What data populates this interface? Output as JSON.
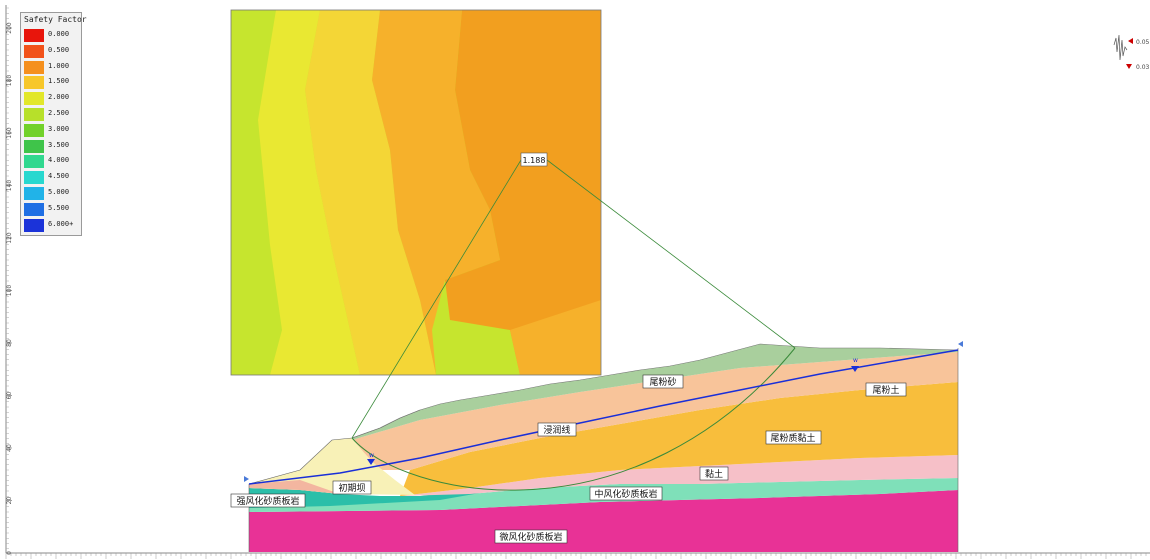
{
  "legend": {
    "title": "Safety Factor",
    "items": [
      {
        "label": "0.000",
        "color": "#e8150c"
      },
      {
        "label": "0.500",
        "color": "#f2521a"
      },
      {
        "label": "1.000",
        "color": "#f5901e"
      },
      {
        "label": "1.500",
        "color": "#f7c72a"
      },
      {
        "label": "2.000",
        "color": "#e2e72a"
      },
      {
        "label": "2.500",
        "color": "#b7e02a"
      },
      {
        "label": "3.000",
        "color": "#72d12a"
      },
      {
        "label": "3.500",
        "color": "#3fc44a"
      },
      {
        "label": "4.000",
        "color": "#30d88f"
      },
      {
        "label": "4.500",
        "color": "#28d8cf"
      },
      {
        "label": "5.000",
        "color": "#21b3e8"
      },
      {
        "label": "5.500",
        "color": "#1f6fe4"
      },
      {
        "label": "6.000+",
        "color": "#1b33d9"
      }
    ]
  },
  "vertical_axis": {
    "ticks": [
      "200",
      "180",
      "160",
      "140",
      "120",
      "100",
      "80",
      "60",
      "40",
      "20",
      "0"
    ]
  },
  "contour_grid": {
    "fill_colors": [
      "#c6e52e",
      "#e9e832",
      "#f4d636",
      "#f6b12b",
      "#f29f1f"
    ]
  },
  "critical_surface": {
    "safety_factor_label": "1.188",
    "surface_color": "#3a8a3a"
  },
  "materials": [
    {
      "name": "尾粉砂",
      "color": "#a9cf9d"
    },
    {
      "name": "尾粉土",
      "color": "#f8c49a"
    },
    {
      "name": "尾粉质黏土",
      "color": "#f8be3c"
    },
    {
      "name": "黏土",
      "color": "#f6c0c8"
    },
    {
      "name": "初期坝",
      "color": "#f8f1b7"
    },
    {
      "name": "强风化砂质板岩",
      "color": "#2bbfa9"
    },
    {
      "name": "中风化砂质板岩",
      "color": "#7fe0b9"
    },
    {
      "name": "微风化砂质板岩",
      "color": "#e83296"
    }
  ],
  "phreatic_line": {
    "label": "浸润线",
    "color": "#1a2fd8"
  },
  "seismic": {
    "horizontal": "0.05",
    "vertical": "0.03"
  }
}
